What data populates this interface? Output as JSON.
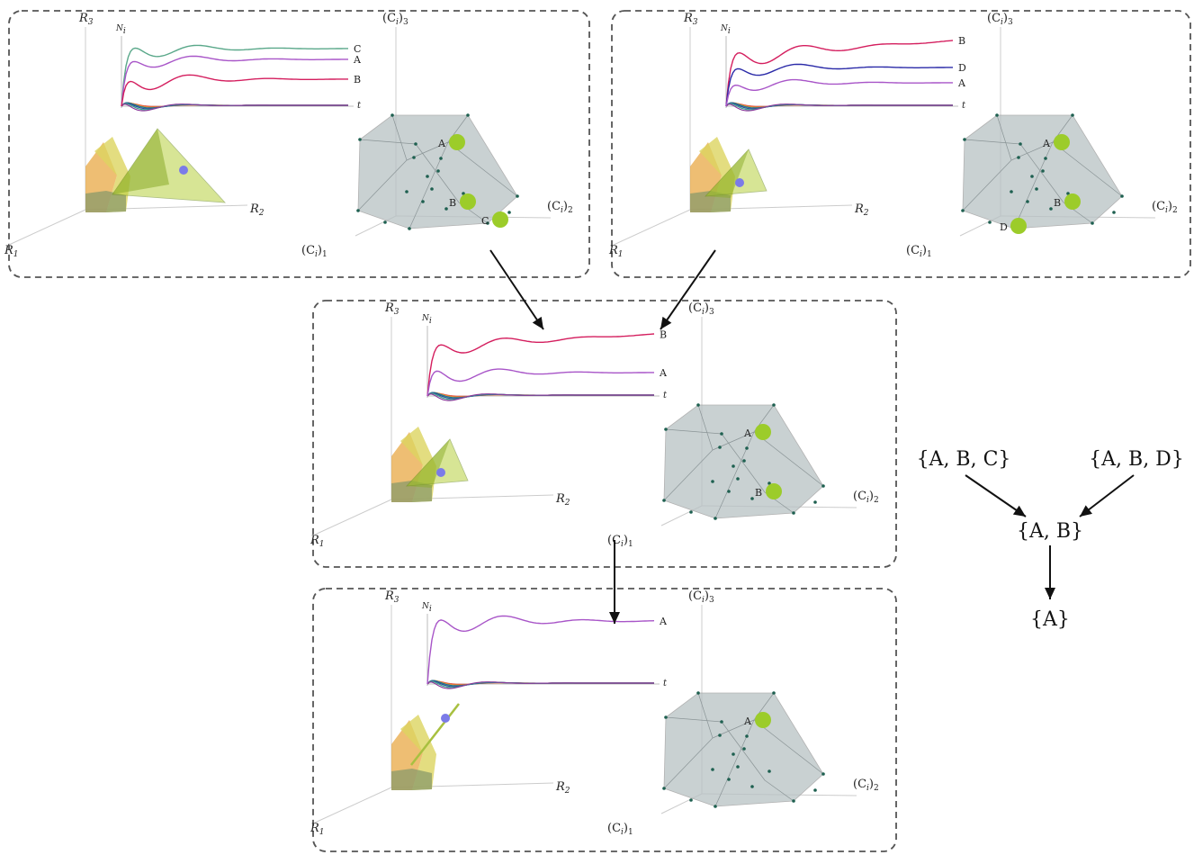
{
  "axes_left": {
    "r1": "R",
    "r1_sub": "1",
    "r2": "R",
    "r2_sub": "2",
    "r3": "R",
    "r3_sub": "3"
  },
  "axes_right": {
    "c1": "(C",
    "c1_tail": ")",
    "c1_sub": "1",
    "c2": "(C",
    "c2_tail": ")",
    "c2_sub": "2",
    "c3": "(C",
    "c3_tail": ")",
    "c3_sub": "3",
    "i": "i"
  },
  "plot_labels": {
    "n": "N",
    "n_sub": "i",
    "t": "t"
  },
  "panels": [
    {
      "name": "panel-top-left",
      "species": [
        "C",
        "A",
        "B"
      ],
      "points": [
        "A",
        "B",
        "C"
      ]
    },
    {
      "name": "panel-top-right",
      "species": [
        "B",
        "D",
        "A"
      ],
      "points": [
        "A",
        "B",
        "D"
      ]
    },
    {
      "name": "panel-middle",
      "species": [
        "B",
        "A"
      ],
      "points": [
        "A",
        "B"
      ]
    },
    {
      "name": "panel-bottom",
      "species": [
        "A"
      ],
      "points": [
        "A"
      ]
    }
  ],
  "sets": {
    "abc": "{A, B, C}",
    "abd": "{A, B, D}",
    "ab": "{A, B}",
    "a": "{A}"
  },
  "colors": {
    "C": "#5aa88a",
    "A": "#a855c8",
    "B": "#d41e5e",
    "D": "#2a2aa8",
    "point": "#9ccc2a",
    "poly": "#b8c2c4",
    "dot": "#1e6050",
    "blue_dot": "#7b7be8"
  }
}
